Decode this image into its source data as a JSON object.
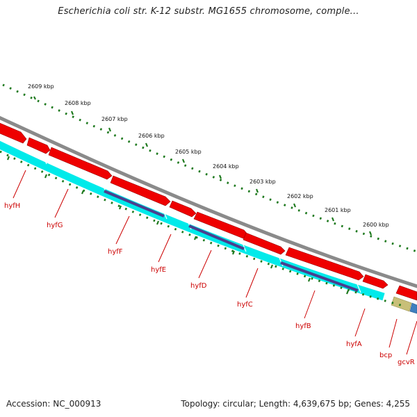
{
  "header": {
    "title": "Escherichia coli str. K-12 substr. MG1655 chromosome, comple..."
  },
  "footer": {
    "accession": "Accession: NC_000913",
    "summary": "Topology: circular; Length: 4,639,675 bp; Genes: 4,255"
  },
  "map": {
    "ruler_labels": [
      "2609 kbp",
      "2608 kbp",
      "2607 kbp",
      "2606 kbp",
      "2605 kbp",
      "2604 kbp",
      "2603 kbp",
      "2602 kbp",
      "2601 kbp",
      "2600 kbp"
    ],
    "gene_labels": [
      "hyfH",
      "hyfG",
      "hyfF",
      "hyfE",
      "hyfD",
      "hyfC",
      "hyfB",
      "hyfA",
      "bcp",
      "gcvR"
    ],
    "colors": {
      "backbone": "#888888",
      "cds": "#ee0000",
      "cds_dark": "#aa0000",
      "gene_track": "#00eeee",
      "feature_track": "#4a3f8f",
      "ruler_ticks": "#1f7a1f",
      "bcp_feature": "#c8bf78",
      "gcvR_feature": "#3f7fbf",
      "label": "#cc0000"
    }
  }
}
